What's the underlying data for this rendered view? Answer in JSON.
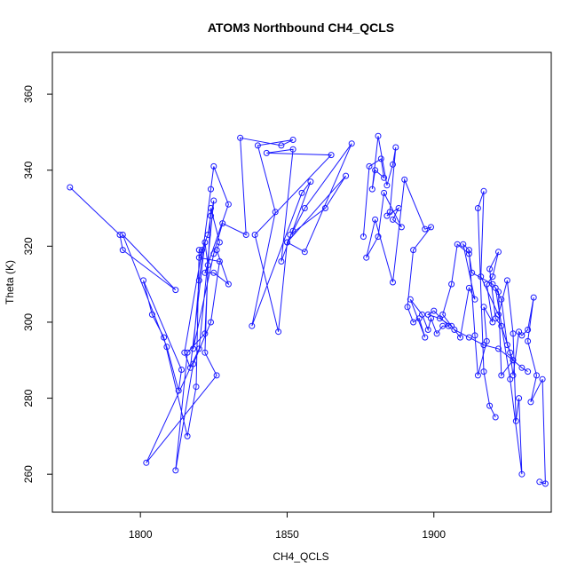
{
  "chart_data": {
    "type": "line",
    "title": "ATOM3 Northbound CH4_QCLS",
    "xlabel": "CH4_QCLS",
    "ylabel": "Theta (K)",
    "xlim": [
      1770,
      1940
    ],
    "ylim": [
      250,
      371
    ],
    "xticks": [
      1800,
      1850,
      1900
    ],
    "yticks": [
      260,
      280,
      300,
      320,
      340,
      360
    ],
    "grid": false,
    "legend": "none",
    "color": "#1a1aff",
    "series": [
      {
        "points": [
          [
            1776,
            335.5
          ],
          [
            1793,
            323
          ],
          [
            1794,
            319
          ],
          [
            1812,
            308.5
          ],
          [
            1794,
            323
          ],
          [
            1809,
            293.5
          ],
          [
            1813,
            282
          ],
          [
            1814,
            287.5
          ],
          [
            1801,
            311
          ],
          [
            1804,
            302
          ],
          [
            1808,
            296
          ],
          [
            1816,
            270
          ],
          [
            1819,
            283
          ],
          [
            1820,
            319
          ],
          [
            1821,
            319
          ],
          [
            1815,
            292
          ],
          [
            1817,
            288
          ],
          [
            1822,
            321
          ],
          [
            1823,
            315
          ],
          [
            1822,
            292
          ],
          [
            1826,
            286
          ],
          [
            1802,
            263
          ],
          [
            1820,
            293
          ],
          [
            1825,
            332
          ],
          [
            1824,
            328
          ],
          [
            1823,
            323
          ],
          [
            1820,
            317
          ],
          [
            1827,
            316
          ],
          [
            1824,
            300
          ],
          [
            1818,
            289
          ],
          [
            1812,
            261
          ],
          [
            1816,
            292
          ],
          [
            1822,
            297
          ],
          [
            1824,
            330
          ],
          [
            1827,
            321
          ],
          [
            1826,
            319
          ],
          [
            1830,
            310
          ],
          [
            1825,
            313
          ],
          [
            1822,
            313
          ],
          [
            1830,
            331
          ],
          [
            1825,
            341
          ],
          [
            1824,
            335
          ],
          [
            1820,
            311
          ],
          [
            1818,
            293
          ],
          [
            1825,
            318
          ],
          [
            1828,
            326
          ],
          [
            1836,
            323
          ],
          [
            1834,
            348.5
          ],
          [
            1848,
            346.5
          ],
          [
            1852,
            348
          ],
          [
            1840,
            346.5
          ],
          [
            1846,
            329
          ],
          [
            1838,
            299
          ],
          [
            1855,
            334
          ],
          [
            1858,
            337
          ],
          [
            1848,
            316
          ],
          [
            1852,
            345.5
          ],
          [
            1843,
            344.5
          ],
          [
            1865,
            344
          ],
          [
            1839,
            323
          ],
          [
            1847,
            297.5
          ],
          [
            1850,
            321
          ],
          [
            1852,
            324
          ],
          [
            1856,
            330
          ],
          [
            1872,
            347
          ],
          [
            1856,
            318.5
          ],
          [
            1850,
            321
          ],
          [
            1870,
            338.5
          ],
          [
            1863,
            330
          ],
          [
            1851,
            323
          ]
        ]
      },
      {
        "points": [
          [
            1876,
            322.5
          ],
          [
            1878,
            341
          ],
          [
            1882,
            343
          ],
          [
            1883,
            338
          ],
          [
            1880,
            340
          ],
          [
            1879,
            335
          ],
          [
            1881,
            349
          ],
          [
            1884,
            336
          ],
          [
            1886,
            341.5
          ],
          [
            1887,
            346
          ],
          [
            1885,
            329
          ],
          [
            1884,
            328
          ],
          [
            1888,
            330
          ],
          [
            1886,
            327
          ],
          [
            1889,
            325
          ],
          [
            1883,
            334
          ],
          [
            1881,
            322.5
          ],
          [
            1877,
            317
          ],
          [
            1880,
            327
          ],
          [
            1886,
            310.5
          ],
          [
            1890,
            337.5
          ],
          [
            1897,
            324.5
          ],
          [
            1899,
            325
          ],
          [
            1893,
            319
          ],
          [
            1891,
            304
          ],
          [
            1893,
            300
          ],
          [
            1895,
            301
          ],
          [
            1897,
            296
          ],
          [
            1892,
            306
          ],
          [
            1896,
            302
          ],
          [
            1898,
            298
          ],
          [
            1899,
            301
          ],
          [
            1901,
            297
          ],
          [
            1903,
            299
          ],
          [
            1905,
            299
          ],
          [
            1900,
            303
          ],
          [
            1898,
            302
          ],
          [
            1902,
            301
          ],
          [
            1906,
            299
          ],
          [
            1909,
            296
          ],
          [
            1912,
            309
          ],
          [
            1914,
            306
          ],
          [
            1910,
            320.5
          ],
          [
            1912,
            319
          ],
          [
            1914,
            296.5
          ],
          [
            1915,
            286
          ],
          [
            1918,
            295
          ],
          [
            1917,
            304
          ],
          [
            1920,
            300
          ],
          [
            1918,
            310
          ],
          [
            1920,
            312
          ],
          [
            1922,
            318.5
          ],
          [
            1919,
            314
          ],
          [
            1921,
            301
          ],
          [
            1923,
            299
          ],
          [
            1926,
            292
          ],
          [
            1927,
            286
          ],
          [
            1929,
            297.5
          ],
          [
            1930,
            296.5
          ],
          [
            1932,
            298
          ],
          [
            1934,
            306.5
          ],
          [
            1932,
            295
          ],
          [
            1935,
            286
          ],
          [
            1933,
            279
          ],
          [
            1937,
            285
          ],
          [
            1938,
            257.5
          ],
          [
            1936,
            258
          ]
        ]
      },
      {
        "points": [
          [
            1921,
            275
          ],
          [
            1919,
            278
          ],
          [
            1917,
            287
          ],
          [
            1915,
            330
          ],
          [
            1917,
            334.5
          ],
          [
            1916,
            312
          ],
          [
            1922,
            302
          ],
          [
            1925,
            311
          ],
          [
            1927,
            297
          ],
          [
            1928,
            274
          ],
          [
            1929,
            280
          ],
          [
            1930,
            260
          ],
          [
            1926,
            285
          ],
          [
            1921,
            309
          ],
          [
            1923,
            306
          ],
          [
            1925,
            294
          ],
          [
            1927,
            290
          ],
          [
            1923,
            286
          ],
          [
            1922,
            308
          ],
          [
            1920,
            310
          ],
          [
            1913,
            313
          ],
          [
            1912,
            318
          ],
          [
            1908,
            320.5
          ],
          [
            1906,
            310
          ],
          [
            1903,
            302
          ],
          [
            1907,
            298
          ],
          [
            1912,
            296
          ],
          [
            1917,
            294
          ],
          [
            1922,
            293
          ],
          [
            1927,
            290
          ],
          [
            1930,
            288
          ],
          [
            1932,
            287
          ]
        ]
      }
    ]
  }
}
